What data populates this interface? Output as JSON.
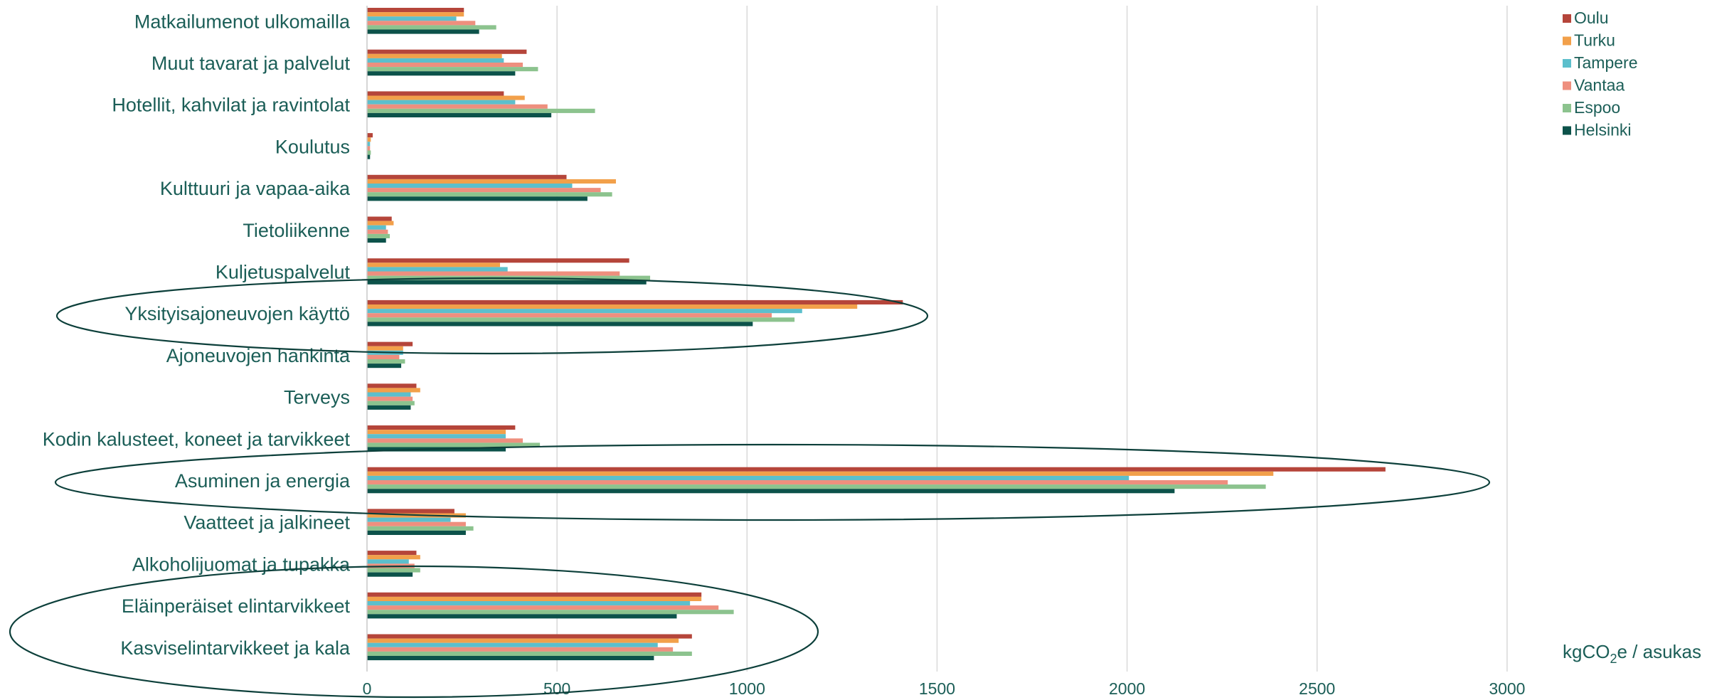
{
  "chart_data": {
    "type": "bar",
    "orientation": "horizontal",
    "categories": [
      "Matkailumenot ulkomailla",
      "Muut tavarat ja palvelut",
      "Hotellit, kahvilat ja ravintolat",
      "Koulutus",
      "Kulttuuri ja vapaa-aika",
      "Tietoliikenne",
      "Kuljetuspalvelut",
      "Yksityisajoneuvojen käyttö",
      "Ajoneuvojen hankinta",
      "Terveys",
      "Kodin kalusteet, koneet ja tarvikkeet",
      "Asuminen ja energia",
      "Vaatteet ja jalkineet",
      "Alkoholijuomat ja tupakka",
      "Eläinperäiset elintarvikkeet",
      "Kasviselintarvikkeet ja kala"
    ],
    "series": [
      {
        "name": "Oulu",
        "color": "#b5453a",
        "values": [
          255,
          420,
          360,
          15,
          525,
          65,
          690,
          1410,
          120,
          130,
          390,
          2680,
          230,
          130,
          880,
          855
        ]
      },
      {
        "name": "Turku",
        "color": "#f2a04a",
        "values": [
          255,
          355,
          415,
          10,
          655,
          70,
          350,
          1290,
          95,
          140,
          365,
          2385,
          260,
          140,
          880,
          820
        ]
      },
      {
        "name": "Tampere",
        "color": "#5cbfcc",
        "values": [
          235,
          360,
          390,
          8,
          540,
          50,
          370,
          1145,
          95,
          115,
          365,
          2005,
          220,
          110,
          850,
          765
        ]
      },
      {
        "name": "Vantaa",
        "color": "#ee8f7e",
        "values": [
          285,
          410,
          475,
          8,
          615,
          55,
          665,
          1065,
          85,
          120,
          410,
          2265,
          260,
          125,
          925,
          805
        ]
      },
      {
        "name": "Espoo",
        "color": "#8cc38e",
        "values": [
          340,
          450,
          600,
          10,
          645,
          60,
          745,
          1125,
          100,
          125,
          455,
          2365,
          280,
          140,
          965,
          855
        ]
      },
      {
        "name": "Helsinki",
        "color": "#0c524a",
        "values": [
          295,
          390,
          485,
          8,
          580,
          50,
          735,
          1015,
          90,
          115,
          365,
          2125,
          260,
          120,
          815,
          755
        ]
      }
    ],
    "x_ticks": [
      "0",
      "500",
      "1000",
      "1500",
      "2000",
      "2500",
      "3000"
    ],
    "xlim": [
      0,
      3000
    ],
    "grid": true,
    "legend_position": "top-right",
    "unit_label": {
      "main": "kgCO",
      "subscript": "2",
      "suffix": "e / asukas"
    },
    "highlight_ellipses": [
      "Yksityisajoneuvojen käyttö",
      "Asuminen ja energia",
      "Eläinperäiset elintarvikkeet + Kasviselintarvikkeet ja kala"
    ]
  }
}
